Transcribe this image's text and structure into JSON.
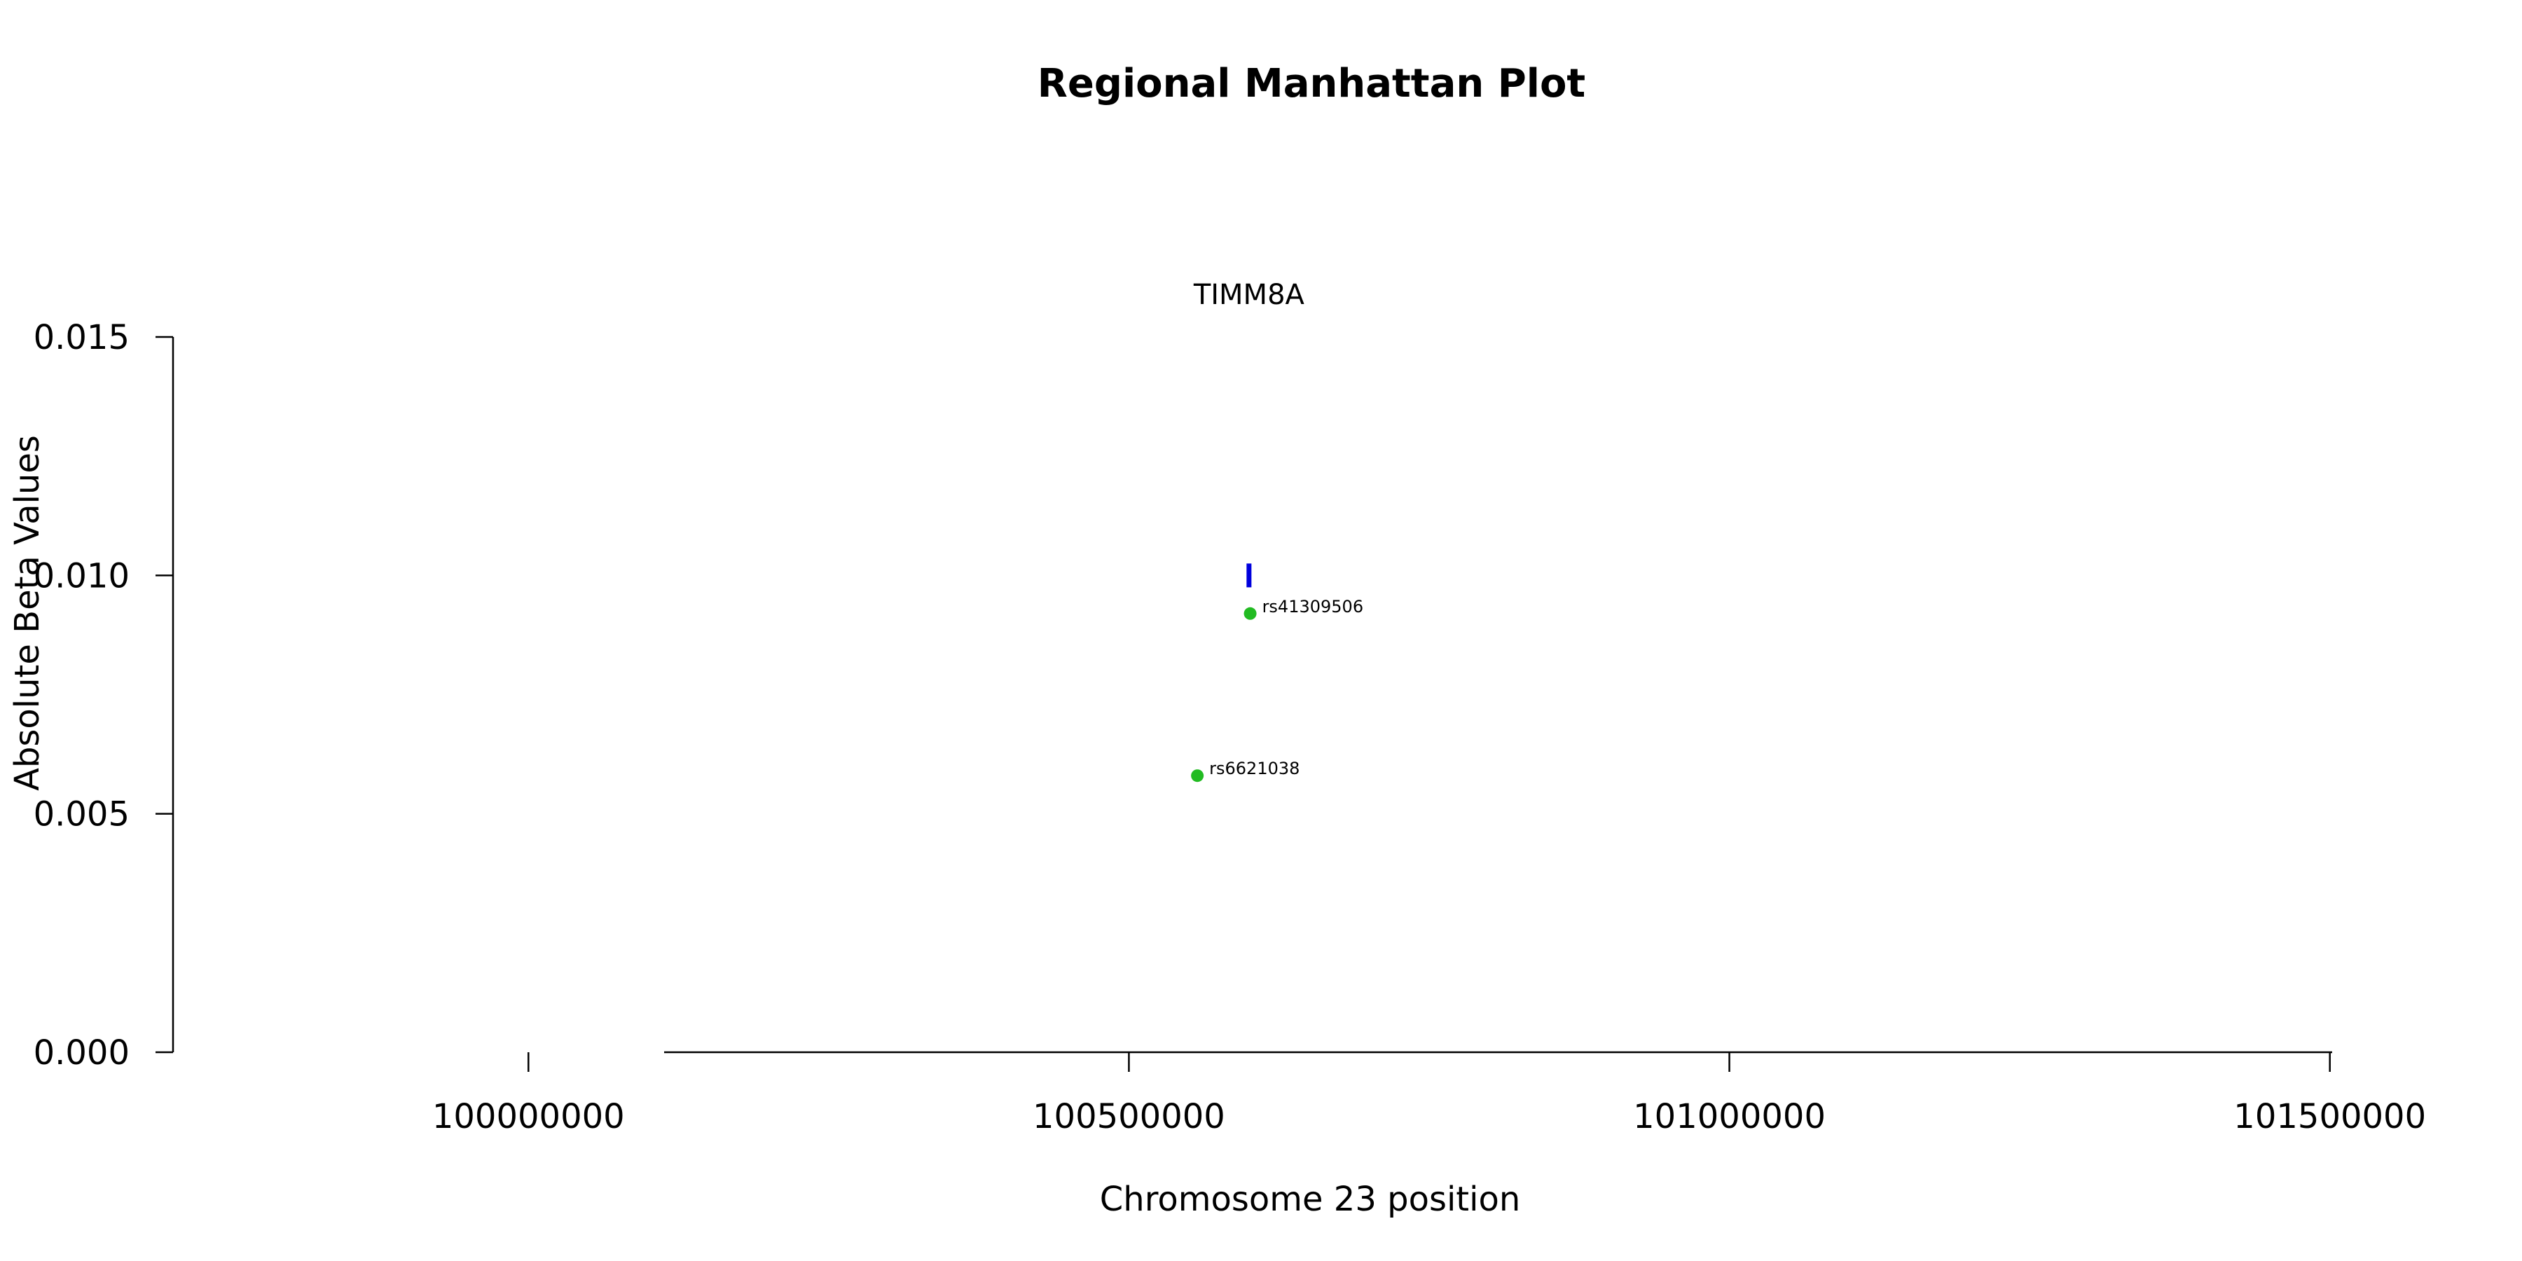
{
  "chart_data": {
    "type": "scatter",
    "title": "Regional Manhattan Plot",
    "xlabel": "Chromosome 23 position",
    "ylabel": "Absolute Beta Values",
    "xlim": [
      99560000,
      101660000
    ],
    "ylim": [
      0.0,
      0.015
    ],
    "x_ticks": [
      100000000,
      100500000,
      101000000,
      101500000
    ],
    "x_tick_labels": [
      "100000000",
      "100500000",
      "101000000",
      "101500000"
    ],
    "y_ticks": [
      0.0,
      0.005,
      0.01,
      0.015
    ],
    "y_tick_labels": [
      "0.000",
      "0.005",
      "0.010",
      "0.015"
    ],
    "grid": false,
    "gene": {
      "name": "TIMM8A",
      "position": 100600000,
      "value": 0.01,
      "color": "#0000dd"
    },
    "points": [
      {
        "label": "rs41309506",
        "x": 100601000,
        "y": 0.0092,
        "color": "#22bb22"
      },
      {
        "label": "rs6621038",
        "x": 100557000,
        "y": 0.0058,
        "color": "#22bb22"
      }
    ]
  }
}
